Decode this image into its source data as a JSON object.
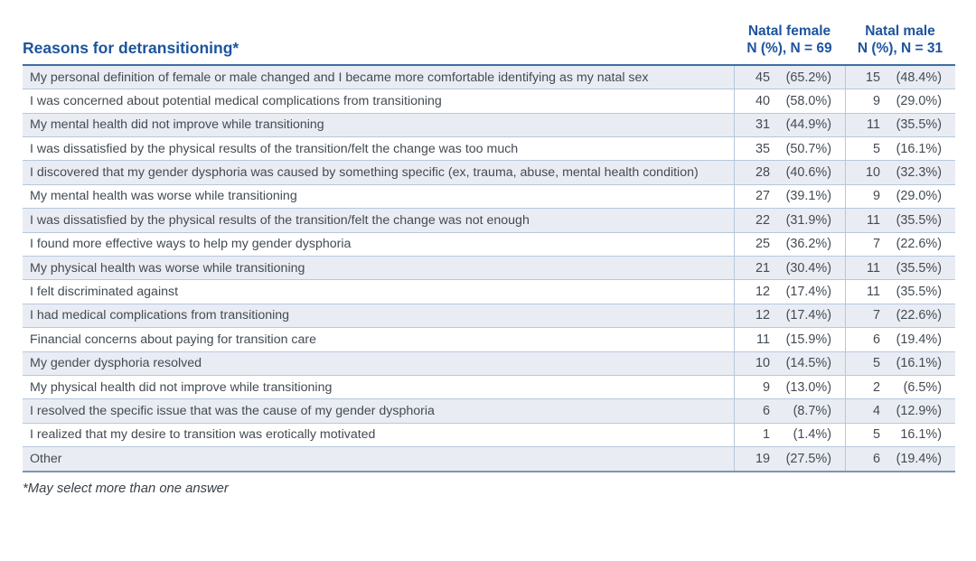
{
  "table": {
    "title": "Reasons for detransitioning*",
    "columns": [
      {
        "line1": "Natal female",
        "line2": "N (%), N = 69"
      },
      {
        "line1": "Natal male",
        "line2": "N (%), N = 31"
      }
    ],
    "rows": [
      {
        "reason": "My personal definition of female or male changed and I became more comfortable identifying as my natal sex",
        "f_n": "45",
        "f_pct": "(65.2%)",
        "m_n": "15",
        "m_pct": "(48.4%)"
      },
      {
        "reason": "I was concerned about potential medical complications from transitioning",
        "f_n": "40",
        "f_pct": "(58.0%)",
        "m_n": "9",
        "m_pct": "(29.0%)"
      },
      {
        "reason": "My mental health did not improve while transitioning",
        "f_n": "31",
        "f_pct": "(44.9%)",
        "m_n": "11",
        "m_pct": "(35.5%)"
      },
      {
        "reason": "I was dissatisfied by the physical results of the transition/felt the change was too much",
        "f_n": "35",
        "f_pct": "(50.7%)",
        "m_n": "5",
        "m_pct": "(16.1%)"
      },
      {
        "reason": "I discovered that my gender dysphoria was caused by something specific (ex, trauma, abuse, mental health condition)",
        "f_n": "28",
        "f_pct": "(40.6%)",
        "m_n": "10",
        "m_pct": "(32.3%)"
      },
      {
        "reason": "My mental health was worse while transitioning",
        "f_n": "27",
        "f_pct": "(39.1%)",
        "m_n": "9",
        "m_pct": "(29.0%)"
      },
      {
        "reason": "I was dissatisfied by the physical results of the transition/felt the change was not enough",
        "f_n": "22",
        "f_pct": "(31.9%)",
        "m_n": "11",
        "m_pct": "(35.5%)"
      },
      {
        "reason": "I found more effective ways to help my gender dysphoria",
        "f_n": "25",
        "f_pct": "(36.2%)",
        "m_n": "7",
        "m_pct": "(22.6%)"
      },
      {
        "reason": "My physical health was worse while transitioning",
        "f_n": "21",
        "f_pct": "(30.4%)",
        "m_n": "11",
        "m_pct": "(35.5%)"
      },
      {
        "reason": "I felt discriminated against",
        "f_n": "12",
        "f_pct": "(17.4%)",
        "m_n": "11",
        "m_pct": "(35.5%)"
      },
      {
        "reason": "I had medical complications from transitioning",
        "f_n": "12",
        "f_pct": "(17.4%)",
        "m_n": "7",
        "m_pct": "(22.6%)"
      },
      {
        "reason": "Financial concerns about paying for transition care",
        "f_n": "11",
        "f_pct": "(15.9%)",
        "m_n": "6",
        "m_pct": "(19.4%)"
      },
      {
        "reason": "My gender dysphoria resolved",
        "f_n": "10",
        "f_pct": "(14.5%)",
        "m_n": "5",
        "m_pct": "(16.1%)"
      },
      {
        "reason": "My physical health did not improve while transitioning",
        "f_n": "9",
        "f_pct": "(13.0%)",
        "m_n": "2",
        "m_pct": "(6.5%)"
      },
      {
        "reason": "I resolved the specific issue that was the cause of my gender dysphoria",
        "f_n": "6",
        "f_pct": "(8.7%)",
        "m_n": "4",
        "m_pct": "(12.9%)"
      },
      {
        "reason": "I realized that my desire to transition was erotically motivated",
        "f_n": "1",
        "f_pct": "(1.4%)",
        "m_n": "5",
        "m_pct": "16.1%)"
      },
      {
        "reason": "Other",
        "f_n": "19",
        "f_pct": "(27.5%)",
        "m_n": "6",
        "m_pct": "(19.4%)"
      }
    ],
    "footnote": "*May select more than one answer",
    "colors": {
      "heading_blue": "#1d549d",
      "stripe": "#e9edf3",
      "rule_light": "#b6c8dc",
      "rule_top": "#3d6da6",
      "rule_bottom": "#7e95ae",
      "body_text": "#434b52"
    }
  }
}
